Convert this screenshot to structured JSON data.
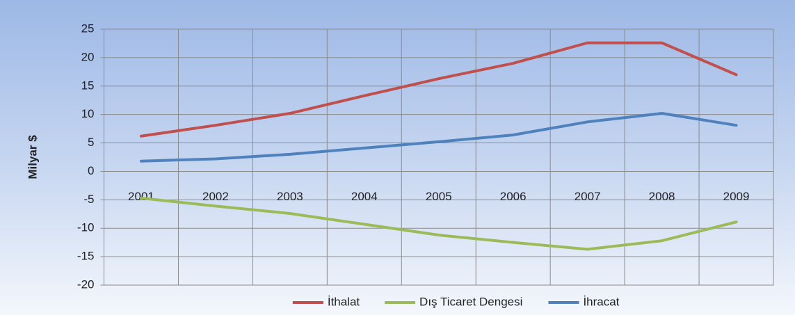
{
  "chart_data": {
    "type": "line",
    "categories": [
      "2001",
      "2002",
      "2003",
      "2004",
      "2005",
      "2006",
      "2007",
      "2008",
      "2009"
    ],
    "series": [
      {
        "name": "İthalat",
        "color": "#c0504d",
        "values": [
          6.2,
          8.1,
          10.2,
          13.3,
          16.3,
          19.0,
          22.6,
          22.6,
          17.0
        ]
      },
      {
        "name": "Dış Ticaret Dengesi",
        "color": "#9bbb59",
        "values": [
          -4.7,
          -6.1,
          -7.4,
          -9.3,
          -11.2,
          -12.5,
          -13.7,
          -12.2,
          -8.9
        ]
      },
      {
        "name": "İhracat",
        "color": "#4f81bd",
        "values": [
          1.8,
          2.2,
          3.0,
          4.1,
          5.2,
          6.4,
          8.7,
          10.2,
          8.1
        ]
      }
    ],
    "y_label": "Milyar $",
    "ylim": [
      -20,
      25
    ],
    "yticks": [
      -20,
      -15,
      -10,
      -5,
      0,
      5,
      10,
      15,
      20,
      25
    ],
    "grid": true,
    "legend": "bottom"
  }
}
